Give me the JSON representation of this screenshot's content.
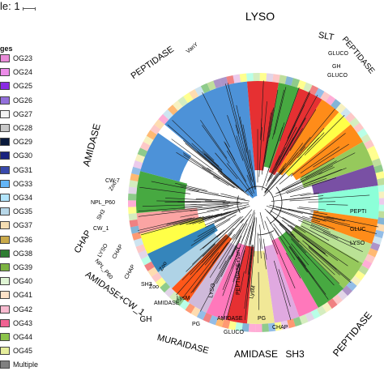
{
  "legend": {
    "scale_label": "le: 1",
    "heading": "ges",
    "items": [
      {
        "label": "OG23",
        "color": "#e98cd8"
      },
      {
        "label": "OG24",
        "color": "#ec8be8"
      },
      {
        "label": "OG25",
        "color": "#8a2be2"
      },
      {
        "label": "OG26",
        "color": "#9370db"
      },
      {
        "label": "OG27",
        "color": "#f2f2f2"
      },
      {
        "label": "OG28",
        "color": "#c8c8c8"
      },
      {
        "label": "OG29",
        "color": "#0a1a3c"
      },
      {
        "label": "OG30",
        "color": "#1a237e"
      },
      {
        "label": "OG31",
        "color": "#3949ab"
      },
      {
        "label": "OG33",
        "color": "#64b5f6"
      },
      {
        "label": "OG34",
        "color": "#b3e5fc"
      },
      {
        "label": "OG35",
        "color": "#b7d7e8"
      },
      {
        "label": "OG37",
        "color": "#f5deb3"
      },
      {
        "label": "OG36",
        "color": "#c9a94a"
      },
      {
        "label": "OG38",
        "color": "#2e7d32"
      },
      {
        "label": "OG39",
        "color": "#7cb342"
      },
      {
        "label": "OG40",
        "color": "#dff5d4"
      },
      {
        "label": "OG41",
        "color": "#fde2c8"
      },
      {
        "label": "OG42",
        "color": "#f8bbd0"
      },
      {
        "label": "OG43",
        "color": "#f06292"
      },
      {
        "label": "OG44",
        "color": "#8bc34a"
      },
      {
        "label": "OG45",
        "color": "#e6ee9c"
      },
      {
        "label": "Multiple",
        "color": "#808080"
      }
    ]
  },
  "domain_labels": [
    {
      "key": "lyso",
      "text": "LYSO",
      "size": "large"
    },
    {
      "key": "peptidase_top",
      "text": "PEPTIDASE",
      "size": "large"
    },
    {
      "key": "slt",
      "text": "SLT",
      "size": "medium"
    },
    {
      "key": "peptidase_topright",
      "text": "PEPTIDASE",
      "size": "medium"
    },
    {
      "key": "amidase_left",
      "text": "AMIDASE",
      "size": "large"
    },
    {
      "key": "chap_left",
      "text": "CHAP",
      "size": "medium"
    },
    {
      "key": "amidase_cw1",
      "text": "AMIDASE+CW_1",
      "size": "large"
    },
    {
      "key": "gh_bottom",
      "text": "GH",
      "size": "medium"
    },
    {
      "key": "muraidase",
      "text": "MURAIDASE",
      "size": "large"
    },
    {
      "key": "amidase_bottom",
      "text": "AMIDASE",
      "size": "large"
    },
    {
      "key": "sh3_bottom",
      "text": "SH3",
      "size": "medium"
    },
    {
      "key": "peptidase_bottomright",
      "text": "PEPTIDASE",
      "size": "large"
    }
  ],
  "small_labels": [
    "VanY",
    "GLUCO",
    "GH",
    "GLUCO",
    "CW-7",
    "NPL_P60",
    "Zoo",
    "SH3",
    "CW_1",
    "LYSO",
    "CHAP",
    "NPL_P60",
    "CHAP",
    "SH3",
    "Zoo",
    "AMIDASE",
    "LysM",
    "Zoo",
    "LYSO",
    "PG",
    "AMIDASE",
    "GLUCO",
    "PEPTIDASE+VanY",
    "LysM",
    "CHAP",
    "PG",
    "PEPTI",
    "GLUC",
    "LYSO"
  ],
  "palette": [
    "#3a86d4",
    "#e31a1c",
    "#33a02c",
    "#ff7f00",
    "#ffff33",
    "#a6cee3",
    "#6a3d9a",
    "#fb9a99",
    "#b2df8a",
    "#fdbf6f",
    "#cab2d6",
    "#1f78b4",
    "#ff69b4",
    "#8bc34a",
    "#ff4500",
    "#7fffd4",
    "#dda0dd",
    "#f0e68c"
  ]
}
